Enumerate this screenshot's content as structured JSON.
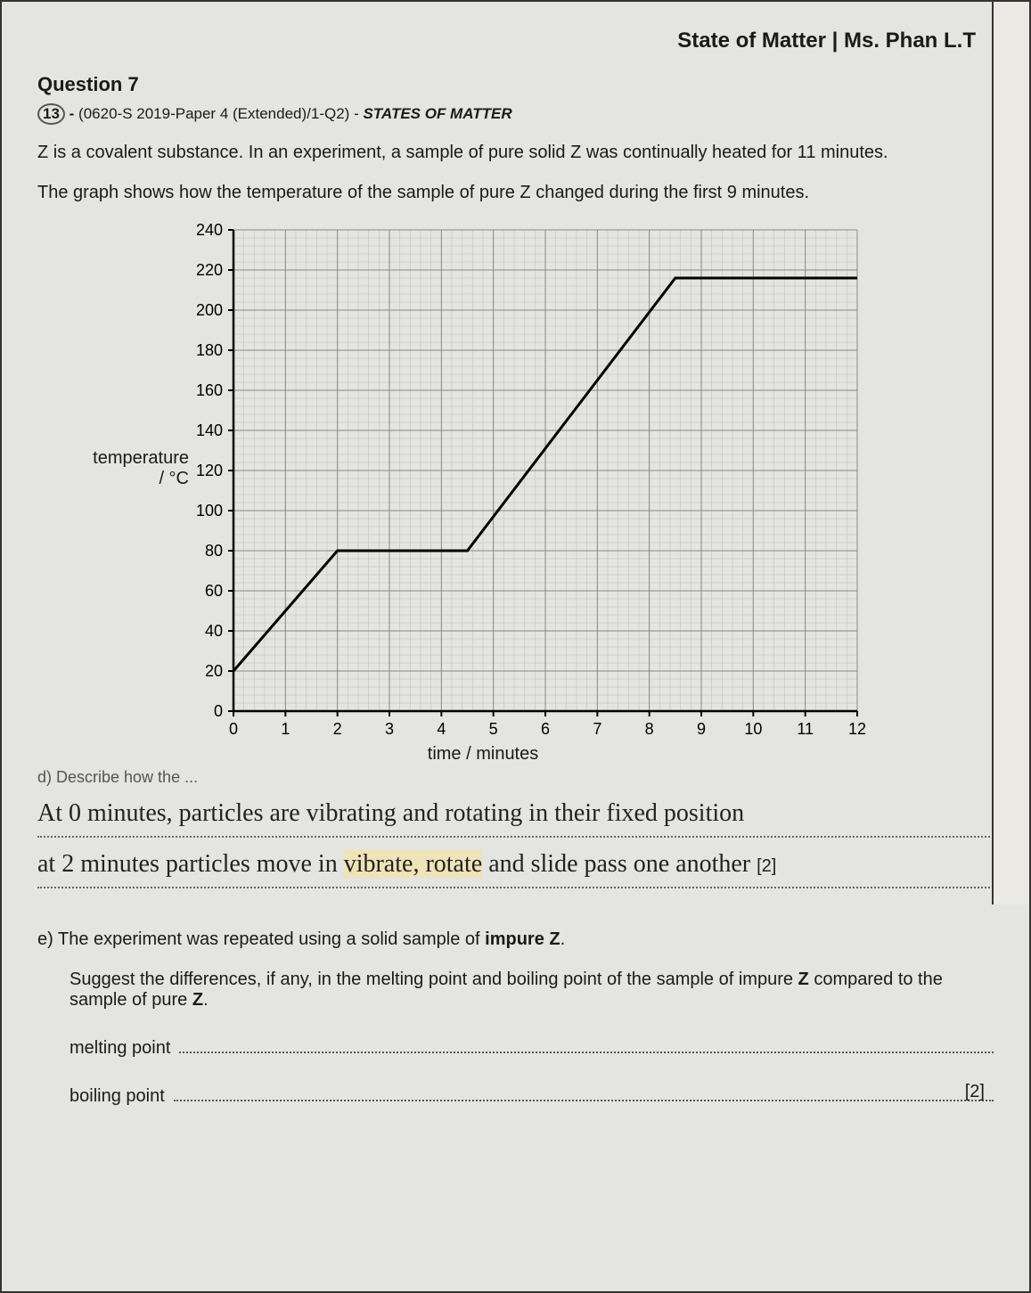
{
  "header": {
    "title": "State of Matter | Ms. Phan L.T"
  },
  "question": {
    "label": "Question 7",
    "number": "13",
    "ref_prefix": "(0620-S 2019-Paper 4 (Extended)/1-Q2)",
    "ref_topic": "STATES OF MATTER",
    "intro_line1": "Z is a covalent substance. In an experiment, a sample of pure solid Z was continually heated for 11 minutes.",
    "intro_line2": "The graph shows how the temperature of the sample of pure Z changed during the first 9 minutes."
  },
  "chart": {
    "type": "line",
    "xlabel": "time / minutes",
    "ylabel_line1": "temperature",
    "ylabel_line2": "/ °C",
    "xlim": [
      0,
      12
    ],
    "ylim": [
      0,
      240
    ],
    "xtick_step": 1,
    "ytick_step": 20,
    "minor_x_div": 5,
    "minor_y_div": 5,
    "major_grid_color": "#888888",
    "minor_grid_color": "#bdbdbd",
    "axis_color": "#000000",
    "line_color": "#000000",
    "line_width": 3,
    "background_color": "#e4e4e0",
    "tick_fontsize": 18,
    "label_fontsize": 20,
    "data_points": [
      {
        "x": 0,
        "y": 20
      },
      {
        "x": 2,
        "y": 80
      },
      {
        "x": 4.5,
        "y": 80
      },
      {
        "x": 8.5,
        "y": 216
      },
      {
        "x": 12,
        "y": 216
      }
    ]
  },
  "part_d": {
    "prefix": "d) Describe how the ...",
    "hand_line1": "At 0 minutes, particles are vibrating and rotating in their fixed position",
    "hand_line2_a": "at 2 minutes particles move in ",
    "hand_line2_b": "vibrate, rotate",
    "hand_line2_c": " and slide pass one another",
    "marks": "[2]"
  },
  "part_e": {
    "letter": "e)",
    "prompt": "The experiment was repeated using a solid sample of impure Z.",
    "suggest": "Suggest the differences, if any, in the melting point and boiling point of the sample of impure Z compared to the sample of pure Z.",
    "mp_label": "melting point",
    "bp_label": "boiling point",
    "marks": "[2]"
  }
}
